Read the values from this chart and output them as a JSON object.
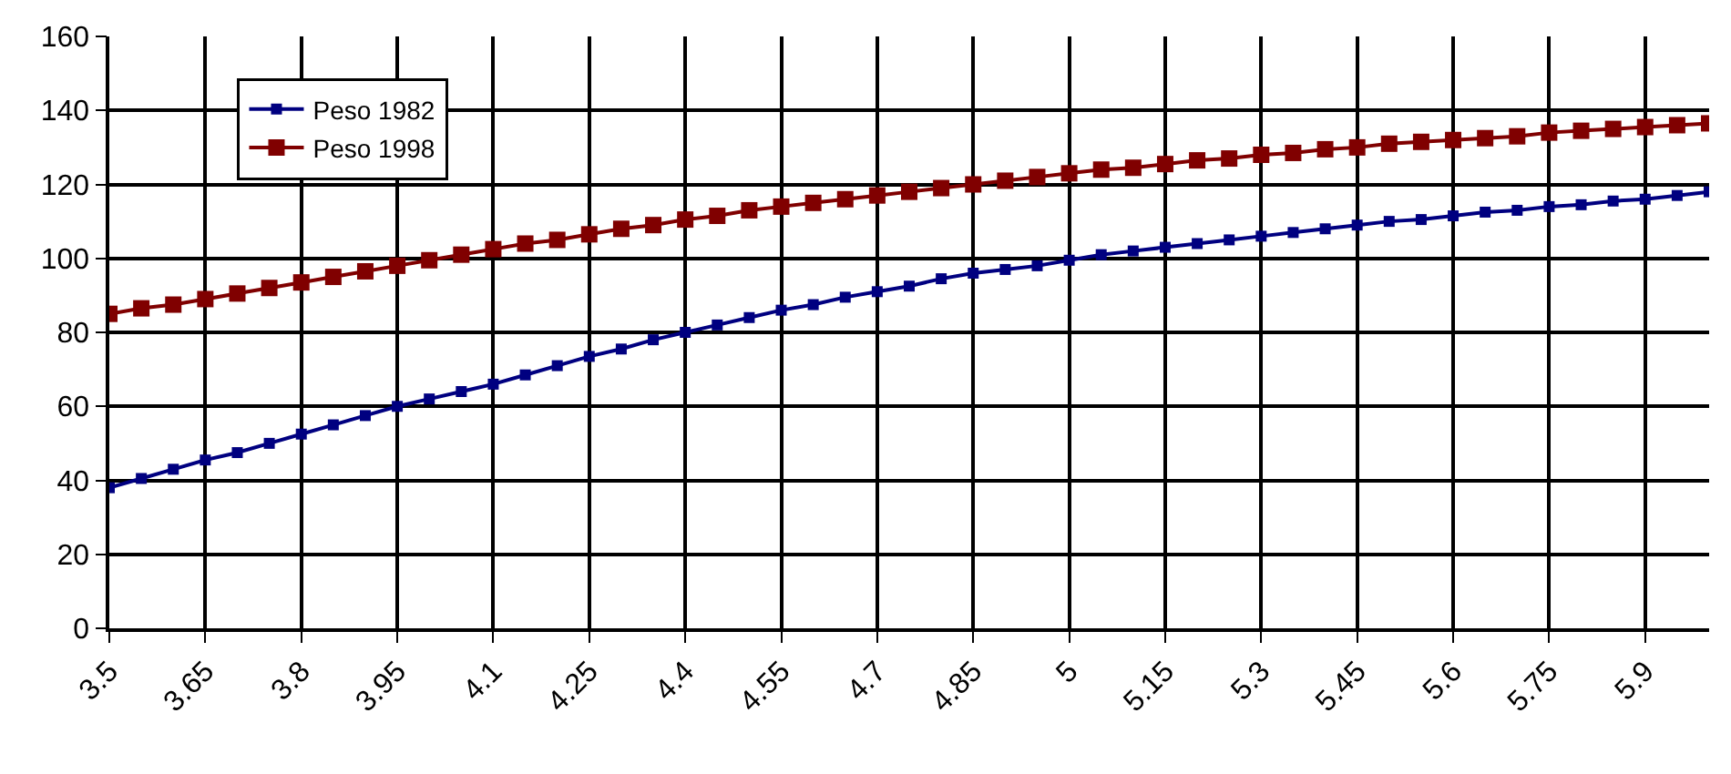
{
  "chart_data": {
    "type": "line",
    "marker": "square",
    "line_style": "solid",
    "grid": true,
    "legend": "top left",
    "x": [
      3.5,
      3.55,
      3.6,
      3.65,
      3.7,
      3.75,
      3.8,
      3.85,
      3.9,
      3.95,
      4.0,
      4.05,
      4.1,
      4.15,
      4.2,
      4.25,
      4.3,
      4.35,
      4.4,
      4.45,
      4.5,
      4.55,
      4.6,
      4.65,
      4.7,
      4.75,
      4.8,
      4.85,
      4.9,
      4.95,
      5.0,
      5.05,
      5.1,
      5.15,
      5.2,
      5.25,
      5.3,
      5.35,
      5.4,
      5.45,
      5.5,
      5.55,
      5.6,
      5.65,
      5.7,
      5.75,
      5.8,
      5.85,
      5.9,
      5.95,
      6.0
    ],
    "series": [
      {
        "name": "Peso 1982",
        "color": "#000080",
        "values": [
          38,
          40.5,
          43,
          45.5,
          47.5,
          50,
          52.5,
          55,
          57.5,
          60,
          62,
          64,
          66,
          68.5,
          71,
          73.5,
          75.5,
          78,
          80,
          82,
          84,
          86,
          87.5,
          89.5,
          91,
          92.5,
          94.5,
          96,
          97,
          98,
          99.5,
          101,
          102,
          103,
          104,
          105,
          106,
          107,
          108,
          109,
          110,
          110.5,
          111.5,
          112.5,
          113,
          114,
          114.5,
          115.5,
          116,
          117,
          118
        ]
      },
      {
        "name": "Peso 1998",
        "color": "#800000",
        "values": [
          85,
          86.5,
          87.5,
          89,
          90.5,
          92,
          93.5,
          95,
          96.5,
          98,
          99.5,
          101,
          102.5,
          104,
          105,
          106.5,
          108,
          109,
          110.5,
          111.5,
          113,
          114,
          115,
          116,
          117,
          118,
          119,
          120,
          121,
          122,
          123,
          124,
          124.5,
          125.5,
          126.5,
          127,
          128,
          128.5,
          129.5,
          130,
          131,
          131.5,
          132,
          132.5,
          133,
          134,
          134.5,
          135,
          135.5,
          136,
          136.5
        ]
      }
    ],
    "xlim": [
      3.5,
      6.0
    ],
    "xticks": [
      3.5,
      3.65,
      3.8,
      3.95,
      4.1,
      4.25,
      4.4,
      4.55,
      4.7,
      4.85,
      5,
      5.15,
      5.3,
      5.45,
      5.6,
      5.75,
      5.9
    ],
    "ylim": [
      0,
      160
    ],
    "yticks": [
      0,
      20,
      40,
      60,
      80,
      100,
      120,
      140,
      160
    ]
  }
}
